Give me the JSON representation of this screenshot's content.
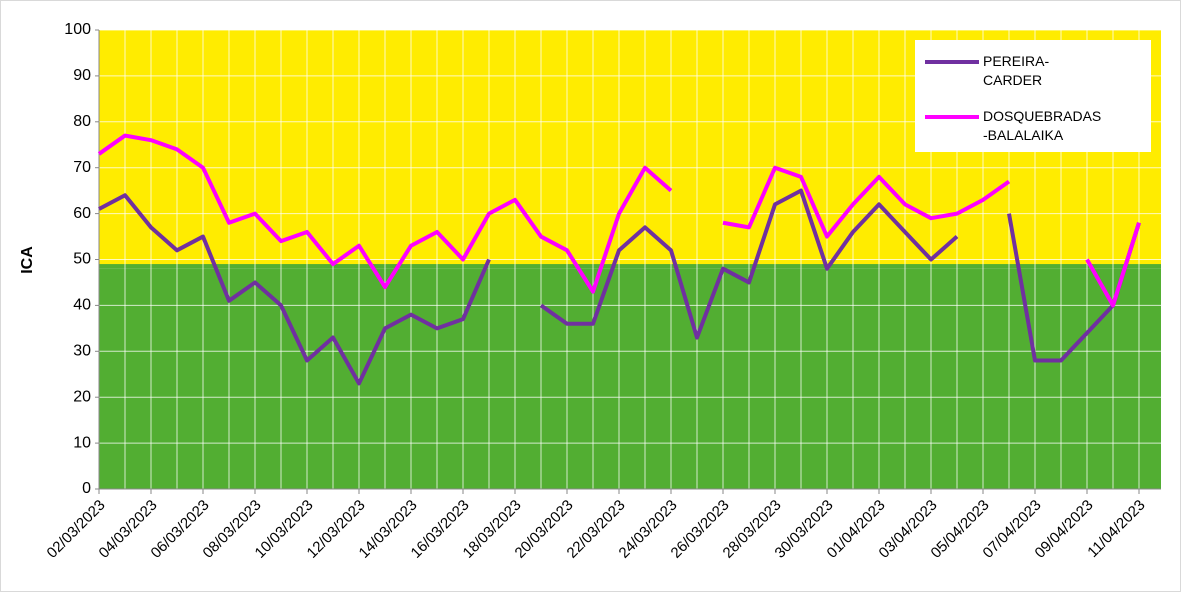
{
  "chart_data": {
    "type": "line",
    "ylabel": "ICA",
    "categories": [
      "02/03/2023",
      null,
      "04/03/2023",
      null,
      "06/03/2023",
      null,
      "08/03/2023",
      null,
      "10/03/2023",
      null,
      "12/03/2023",
      null,
      "14/03/2023",
      null,
      "16/03/2023",
      null,
      "18/03/2023",
      null,
      "20/03/2023",
      null,
      "22/03/2023",
      null,
      "24/03/2023",
      null,
      "26/03/2023",
      null,
      "28/03/2023",
      null,
      "30/03/2023",
      null,
      "01/04/2023",
      null,
      "03/04/2023",
      null,
      "05/04/2023",
      null,
      "07/04/2023",
      null,
      "09/04/2023",
      null,
      "11/04/2023"
    ],
    "series": [
      {
        "name": "PEREIRA-CARDER",
        "color": "#7030a0",
        "values": [
          61,
          64,
          57,
          52,
          55,
          41,
          45,
          40,
          28,
          33,
          23,
          35,
          38,
          35,
          37,
          50,
          null,
          40,
          36,
          36,
          52,
          57,
          52,
          33,
          48,
          45,
          62,
          65,
          48,
          56,
          62,
          56,
          50,
          55,
          null,
          60,
          28,
          28,
          34,
          40,
          58
        ]
      },
      {
        "name": "DOSQUEBRADAS-BALALAIKA",
        "color": "#ff00ff",
        "values": [
          73,
          77,
          76,
          74,
          70,
          58,
          60,
          54,
          56,
          49,
          53,
          44,
          53,
          56,
          50,
          60,
          63,
          55,
          52,
          43,
          60,
          70,
          65,
          null,
          58,
          57,
          70,
          68,
          55,
          62,
          68,
          62,
          59,
          60,
          63,
          67,
          null,
          null,
          50,
          40,
          58
        ]
      }
    ],
    "ylim": [
      0,
      100
    ],
    "yticks": [
      0,
      10,
      20,
      30,
      40,
      50,
      60,
      70,
      80,
      90,
      100
    ],
    "grid": true,
    "bands": [
      {
        "from": 50,
        "to": 100,
        "color": "#ffec00"
      },
      {
        "from": 0,
        "to": 48,
        "color": "#52ae32"
      }
    ],
    "legend": "top-right"
  }
}
